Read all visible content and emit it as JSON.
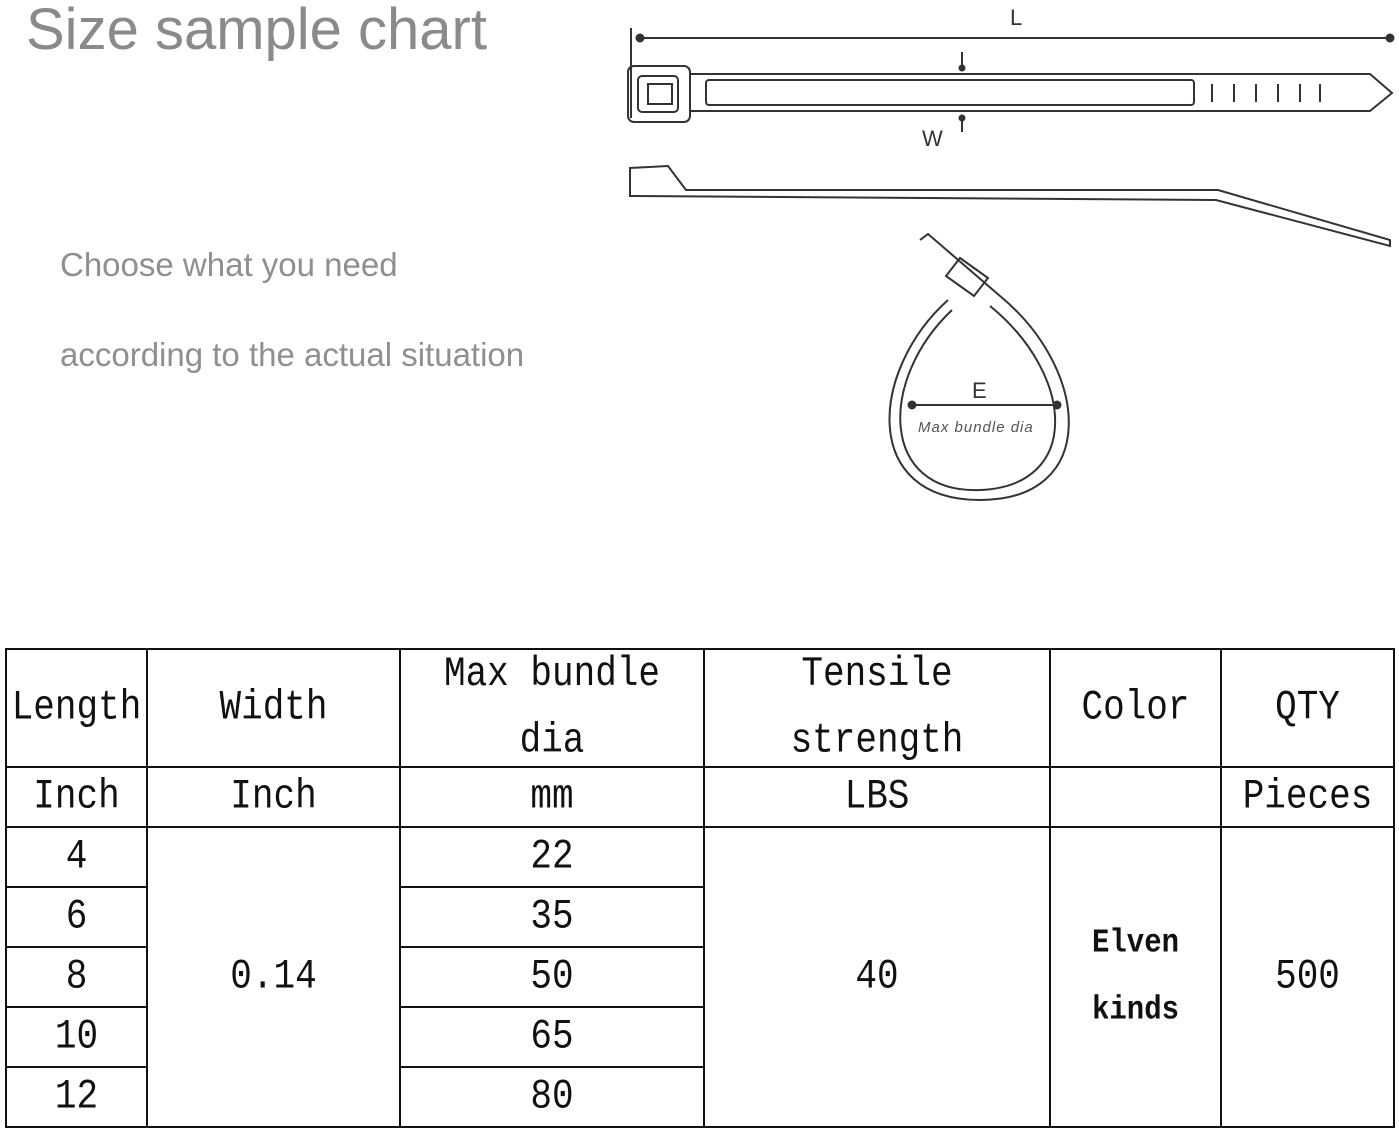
{
  "title": "Size sample chart",
  "subtitle_lines": [
    "Choose what you need",
    "according to the actual situation"
  ],
  "diagram": {
    "length_label": "L",
    "width_label": "W",
    "diameter_label": "E",
    "diameter_caption": "Max bundle dia"
  },
  "table": {
    "headers": [
      "Length",
      "Width",
      "Max bundle dia",
      "Tensile strength",
      "Color",
      "QTY"
    ],
    "units": [
      "Inch",
      "Inch",
      "mm",
      "LBS",
      "",
      "Pieces"
    ],
    "lengths": [
      "4",
      "6",
      "8",
      "10",
      "12"
    ],
    "width": "0.14",
    "max_bundle_dia": [
      "22",
      "35",
      "50",
      "65",
      "80"
    ],
    "tensile_strength": "40",
    "color": "Elven kinds",
    "qty": "500"
  }
}
